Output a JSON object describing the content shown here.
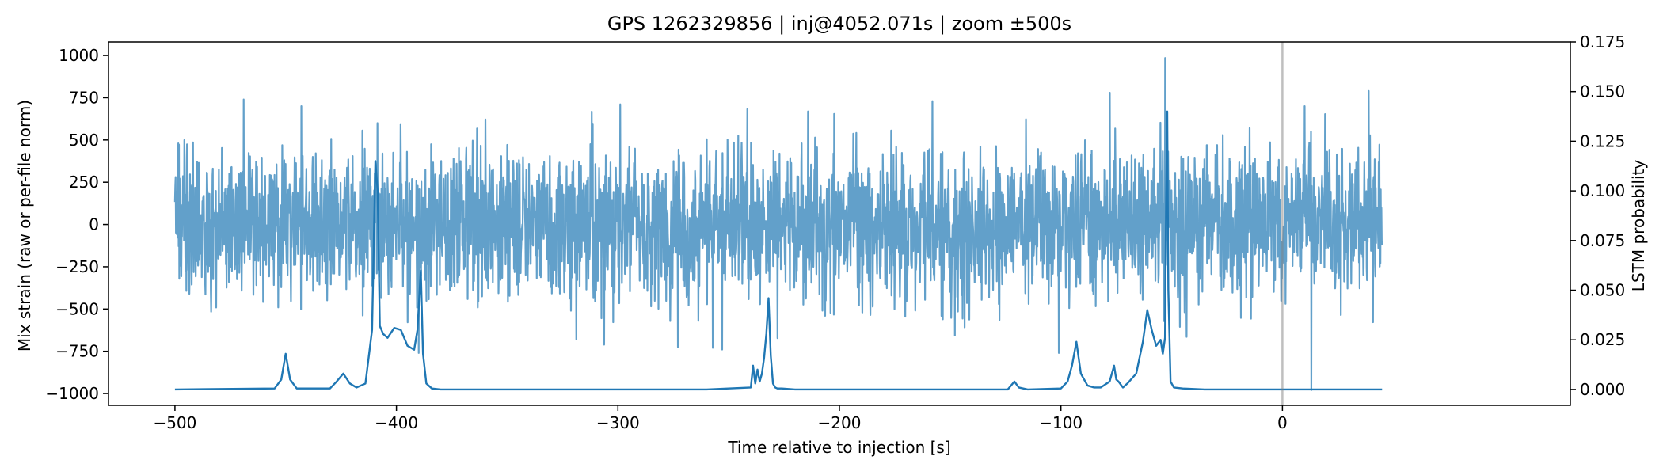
{
  "chart_data": {
    "type": "line",
    "title": "GPS 1262329856 | inj@4052.071s | zoom ±500s",
    "xlabel": "Time relative to injection [s]",
    "ylabel_left": "Mix strain (raw or per-file norm)",
    "ylabel_right": "LSTM probability",
    "xlim": [
      -530,
      130
    ],
    "ylim_left": [
      -1070,
      1080
    ],
    "ylim_right": [
      -0.008,
      0.175
    ],
    "x_ticks": [
      -500,
      -400,
      -300,
      -200,
      -100,
      0
    ],
    "x_tick_labels": [
      "−500",
      "−400",
      "−300",
      "−200",
      "−100",
      "0"
    ],
    "y_left_ticks": [
      -1000,
      -750,
      -500,
      -250,
      0,
      250,
      500,
      750,
      1000
    ],
    "y_left_tick_labels": [
      "−1000",
      "−750",
      "−500",
      "−250",
      "0",
      "250",
      "500",
      "750",
      "1000"
    ],
    "y_right_ticks": [
      0.0,
      0.025,
      0.05,
      0.075,
      0.1,
      0.125,
      0.15,
      0.175
    ],
    "y_right_tick_labels": [
      "0.000",
      "0.025",
      "0.050",
      "0.075",
      "0.100",
      "0.125",
      "0.150",
      "0.175"
    ],
    "grid": false,
    "injection_marker_x": 0,
    "series": [
      {
        "color": "#1f77b4",
        "opacity": 0.7,
        "axis": "left",
        "style": "noise",
        "x_range": [
          -500,
          45
        ],
        "typical_amplitude": 500,
        "peak_spikes": [
          {
            "x": -469,
            "y": 740
          },
          {
            "x": -443,
            "y": 700
          },
          {
            "x": -408.5,
            "y": 600
          },
          {
            "x": -390,
            "y": -760
          },
          {
            "x": -253,
            "y": -740
          },
          {
            "x": -158,
            "y": 730
          },
          {
            "x": -101,
            "y": -760
          },
          {
            "x": -78,
            "y": 780
          },
          {
            "x": -53,
            "y": 985
          },
          {
            "x": 10,
            "y": 700
          },
          {
            "x": 13,
            "y": -980
          },
          {
            "x": 39,
            "y": 790
          }
        ]
      },
      {
        "color": "#1f77b4",
        "opacity": 1.0,
        "axis": "right",
        "style": "line",
        "x": [
          -500,
          -455,
          -452,
          -450,
          -448,
          -445,
          -430,
          -427,
          -424,
          -421,
          -418,
          -414,
          -411,
          -409.5,
          -408.5,
          -407.5,
          -406,
          -404,
          -401,
          -398,
          -395,
          -392,
          -390.5,
          -389,
          -388,
          -386.5,
          -384,
          -380,
          -260,
          -240,
          -239,
          -238,
          -237,
          -236,
          -235,
          -234,
          -233,
          -232,
          -231,
          -230,
          -229,
          -228,
          -226,
          -220,
          -124,
          -121,
          -119,
          -115,
          -100,
          -97,
          -95,
          -93,
          -91,
          -88,
          -85,
          -82,
          -78,
          -76,
          -75,
          -74,
          -72,
          -70,
          -66,
          -63,
          -61,
          -59,
          -57,
          -55,
          -54,
          -53,
          -52.5,
          -52,
          -51.5,
          -50.5,
          -49,
          -45,
          -35,
          45
        ],
        "y": [
          0.0,
          0.0005,
          0.005,
          0.018,
          0.005,
          0.0005,
          0.0005,
          0.004,
          0.008,
          0.003,
          0.001,
          0.003,
          0.03,
          0.115,
          0.1,
          0.032,
          0.028,
          0.026,
          0.031,
          0.03,
          0.022,
          0.02,
          0.03,
          0.06,
          0.018,
          0.003,
          0.0005,
          0.0,
          0.0,
          0.001,
          0.012,
          0.003,
          0.01,
          0.004,
          0.008,
          0.016,
          0.028,
          0.046,
          0.017,
          0.003,
          0.001,
          0.0005,
          0.0005,
          0.0,
          0.0,
          0.004,
          0.001,
          0.0,
          0.0005,
          0.004,
          0.012,
          0.024,
          0.008,
          0.002,
          0.001,
          0.001,
          0.004,
          0.012,
          0.005,
          0.004,
          0.001,
          0.003,
          0.008,
          0.024,
          0.04,
          0.03,
          0.022,
          0.025,
          0.018,
          0.026,
          0.095,
          0.14,
          0.05,
          0.004,
          0.001,
          0.0005,
          0.0,
          0.0
        ]
      }
    ]
  }
}
